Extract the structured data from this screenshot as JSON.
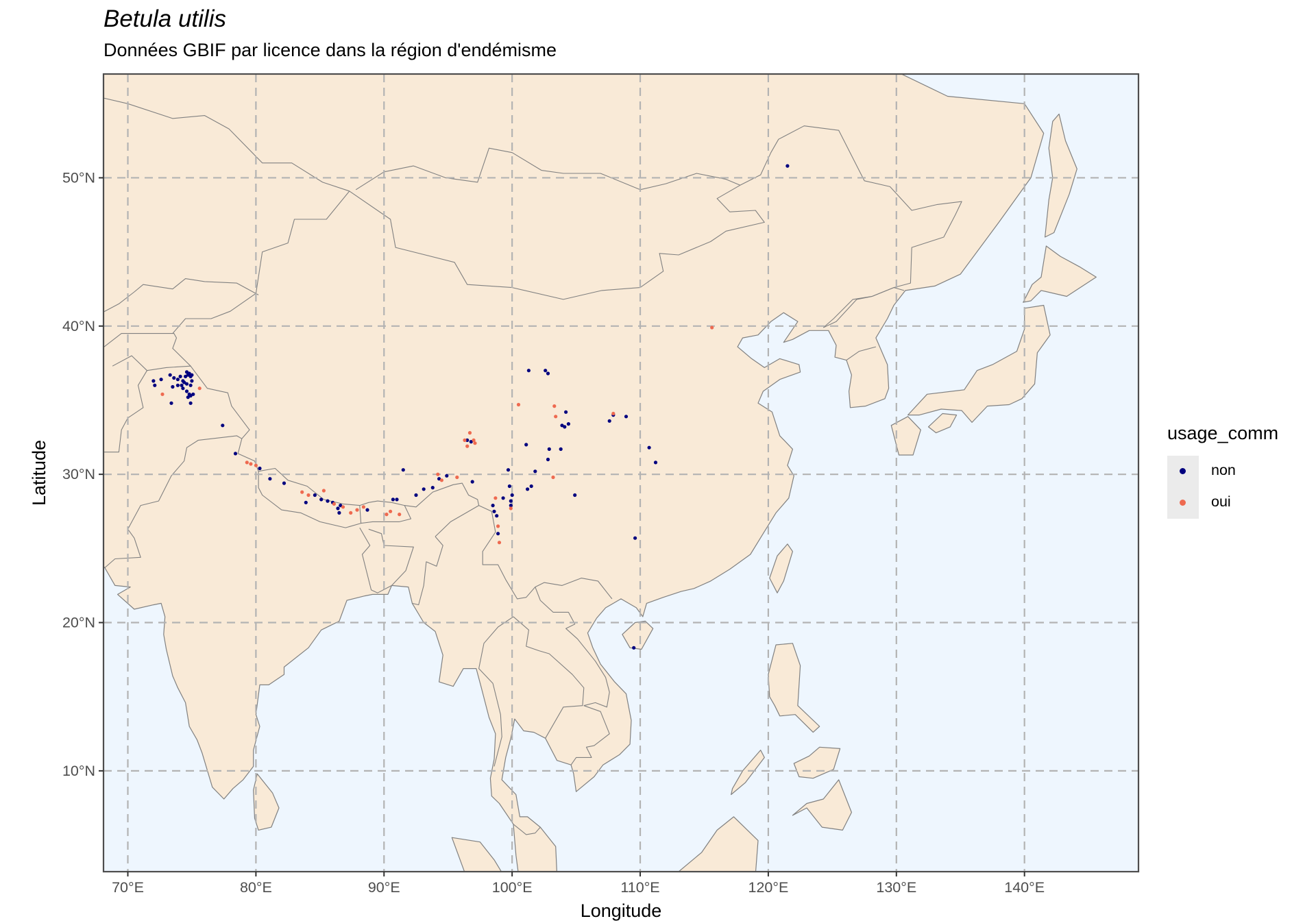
{
  "title": "Betula utilis",
  "subtitle": "Données GBIF par licence dans la région d'endémisme",
  "colors": {
    "ocean": "#eef6fe",
    "land": "#f9ead7",
    "border": "#808080",
    "grid": "#b3b3b3",
    "panel_border": "#4d4d4d",
    "non": "#00007f",
    "oui": "#ee6a50"
  },
  "chart_data": {
    "type": "scatter",
    "xlabel": "Longitude",
    "ylabel": "Latitude",
    "xlim": [
      68.1,
      148.9
    ],
    "ylim": [
      3.2,
      57.0
    ],
    "x_ticks": [
      70,
      80,
      90,
      100,
      110,
      120,
      130,
      140
    ],
    "x_tick_labels": [
      "70°E",
      "80°E",
      "90°E",
      "100°E",
      "110°E",
      "120°E",
      "130°E",
      "140°E"
    ],
    "y_ticks": [
      10,
      20,
      30,
      40,
      50
    ],
    "y_tick_labels": [
      "10°N",
      "20°N",
      "30°N",
      "40°N",
      "50°N"
    ],
    "grid": "major, dashed",
    "legend_position": "right",
    "legend": {
      "title": "usage_comm",
      "entries": [
        {
          "label": "non",
          "color": "#00007f"
        },
        {
          "label": "oui",
          "color": "#ee6a50"
        }
      ]
    },
    "series": [
      {
        "name": "non",
        "color": "#00007f",
        "points": [
          [
            72.0,
            36.3
          ],
          [
            72.1,
            36.0
          ],
          [
            72.6,
            36.4
          ],
          [
            73.3,
            36.7
          ],
          [
            73.6,
            36.5
          ],
          [
            73.9,
            36.4
          ],
          [
            74.1,
            36.6
          ],
          [
            74.3,
            36.3
          ],
          [
            74.5,
            36.6
          ],
          [
            74.6,
            36.9
          ],
          [
            74.7,
            36.7
          ],
          [
            74.8,
            36.8
          ],
          [
            74.9,
            36.6
          ],
          [
            75.0,
            36.7
          ],
          [
            74.4,
            36.2
          ],
          [
            74.2,
            36.0
          ],
          [
            74.6,
            36.1
          ],
          [
            74.9,
            36.0
          ],
          [
            73.9,
            36.0
          ],
          [
            74.3,
            35.8
          ],
          [
            74.6,
            35.6
          ],
          [
            74.8,
            35.4
          ],
          [
            74.7,
            35.2
          ],
          [
            74.9,
            35.3
          ],
          [
            75.1,
            35.4
          ],
          [
            75.0,
            36.3
          ],
          [
            73.5,
            35.9
          ],
          [
            73.4,
            34.8
          ],
          [
            74.9,
            34.8
          ],
          [
            77.4,
            33.3
          ],
          [
            78.4,
            31.4
          ],
          [
            80.3,
            30.4
          ],
          [
            81.1,
            29.7
          ],
          [
            82.2,
            29.4
          ],
          [
            83.9,
            28.1
          ],
          [
            84.6,
            28.6
          ],
          [
            85.1,
            28.3
          ],
          [
            85.6,
            28.2
          ],
          [
            86.0,
            28.1
          ],
          [
            86.4,
            27.7
          ],
          [
            86.6,
            27.9
          ],
          [
            86.5,
            27.4
          ],
          [
            88.7,
            27.6
          ],
          [
            90.7,
            28.3
          ],
          [
            91.0,
            28.3
          ],
          [
            91.5,
            30.3
          ],
          [
            92.5,
            28.6
          ],
          [
            93.1,
            29.0
          ],
          [
            93.8,
            29.1
          ],
          [
            94.3,
            29.7
          ],
          [
            94.9,
            29.9
          ],
          [
            96.5,
            32.3
          ],
          [
            96.8,
            32.2
          ],
          [
            96.9,
            29.5
          ],
          [
            98.5,
            27.9
          ],
          [
            98.6,
            27.5
          ],
          [
            98.8,
            27.2
          ],
          [
            98.9,
            26.0
          ],
          [
            99.3,
            28.4
          ],
          [
            99.7,
            30.3
          ],
          [
            99.8,
            29.2
          ],
          [
            99.9,
            28.2
          ],
          [
            100.0,
            28.6
          ],
          [
            99.9,
            27.9
          ],
          [
            101.1,
            32.0
          ],
          [
            101.2,
            29.0
          ],
          [
            101.5,
            29.2
          ],
          [
            101.3,
            37.0
          ],
          [
            101.8,
            30.2
          ],
          [
            102.6,
            37.0
          ],
          [
            102.8,
            36.8
          ],
          [
            102.8,
            31.0
          ],
          [
            102.9,
            31.7
          ],
          [
            103.8,
            31.7
          ],
          [
            103.9,
            33.3
          ],
          [
            104.1,
            33.2
          ],
          [
            104.2,
            34.2
          ],
          [
            104.4,
            33.4
          ],
          [
            104.9,
            28.6
          ],
          [
            107.6,
            33.6
          ],
          [
            107.9,
            34.0
          ],
          [
            108.9,
            33.9
          ],
          [
            110.7,
            31.8
          ],
          [
            111.2,
            30.8
          ],
          [
            109.6,
            25.7
          ],
          [
            109.5,
            18.3
          ],
          [
            121.5,
            50.8
          ]
        ]
      },
      {
        "name": "oui",
        "color": "#ee6a50",
        "points": [
          [
            72.7,
            35.4
          ],
          [
            75.6,
            35.8
          ],
          [
            79.3,
            30.8
          ],
          [
            79.6,
            30.7
          ],
          [
            80.0,
            30.6
          ],
          [
            83.6,
            28.8
          ],
          [
            84.1,
            28.6
          ],
          [
            85.3,
            28.9
          ],
          [
            86.1,
            28.0
          ],
          [
            86.8,
            27.8
          ],
          [
            87.4,
            27.4
          ],
          [
            87.9,
            27.6
          ],
          [
            88.4,
            27.8
          ],
          [
            90.2,
            27.3
          ],
          [
            90.5,
            27.5
          ],
          [
            91.2,
            27.3
          ],
          [
            94.2,
            30.0
          ],
          [
            94.5,
            29.6
          ],
          [
            95.7,
            29.8
          ],
          [
            96.3,
            32.3
          ],
          [
            96.5,
            31.9
          ],
          [
            96.7,
            32.8
          ],
          [
            97.0,
            32.3
          ],
          [
            97.1,
            32.1
          ],
          [
            98.7,
            28.4
          ],
          [
            98.9,
            26.5
          ],
          [
            99.0,
            25.4
          ],
          [
            99.9,
            27.7
          ],
          [
            100.5,
            34.7
          ],
          [
            103.2,
            29.8
          ],
          [
            103.3,
            34.6
          ],
          [
            103.4,
            33.9
          ],
          [
            107.9,
            34.1
          ],
          [
            115.6,
            39.9
          ]
        ]
      }
    ]
  }
}
